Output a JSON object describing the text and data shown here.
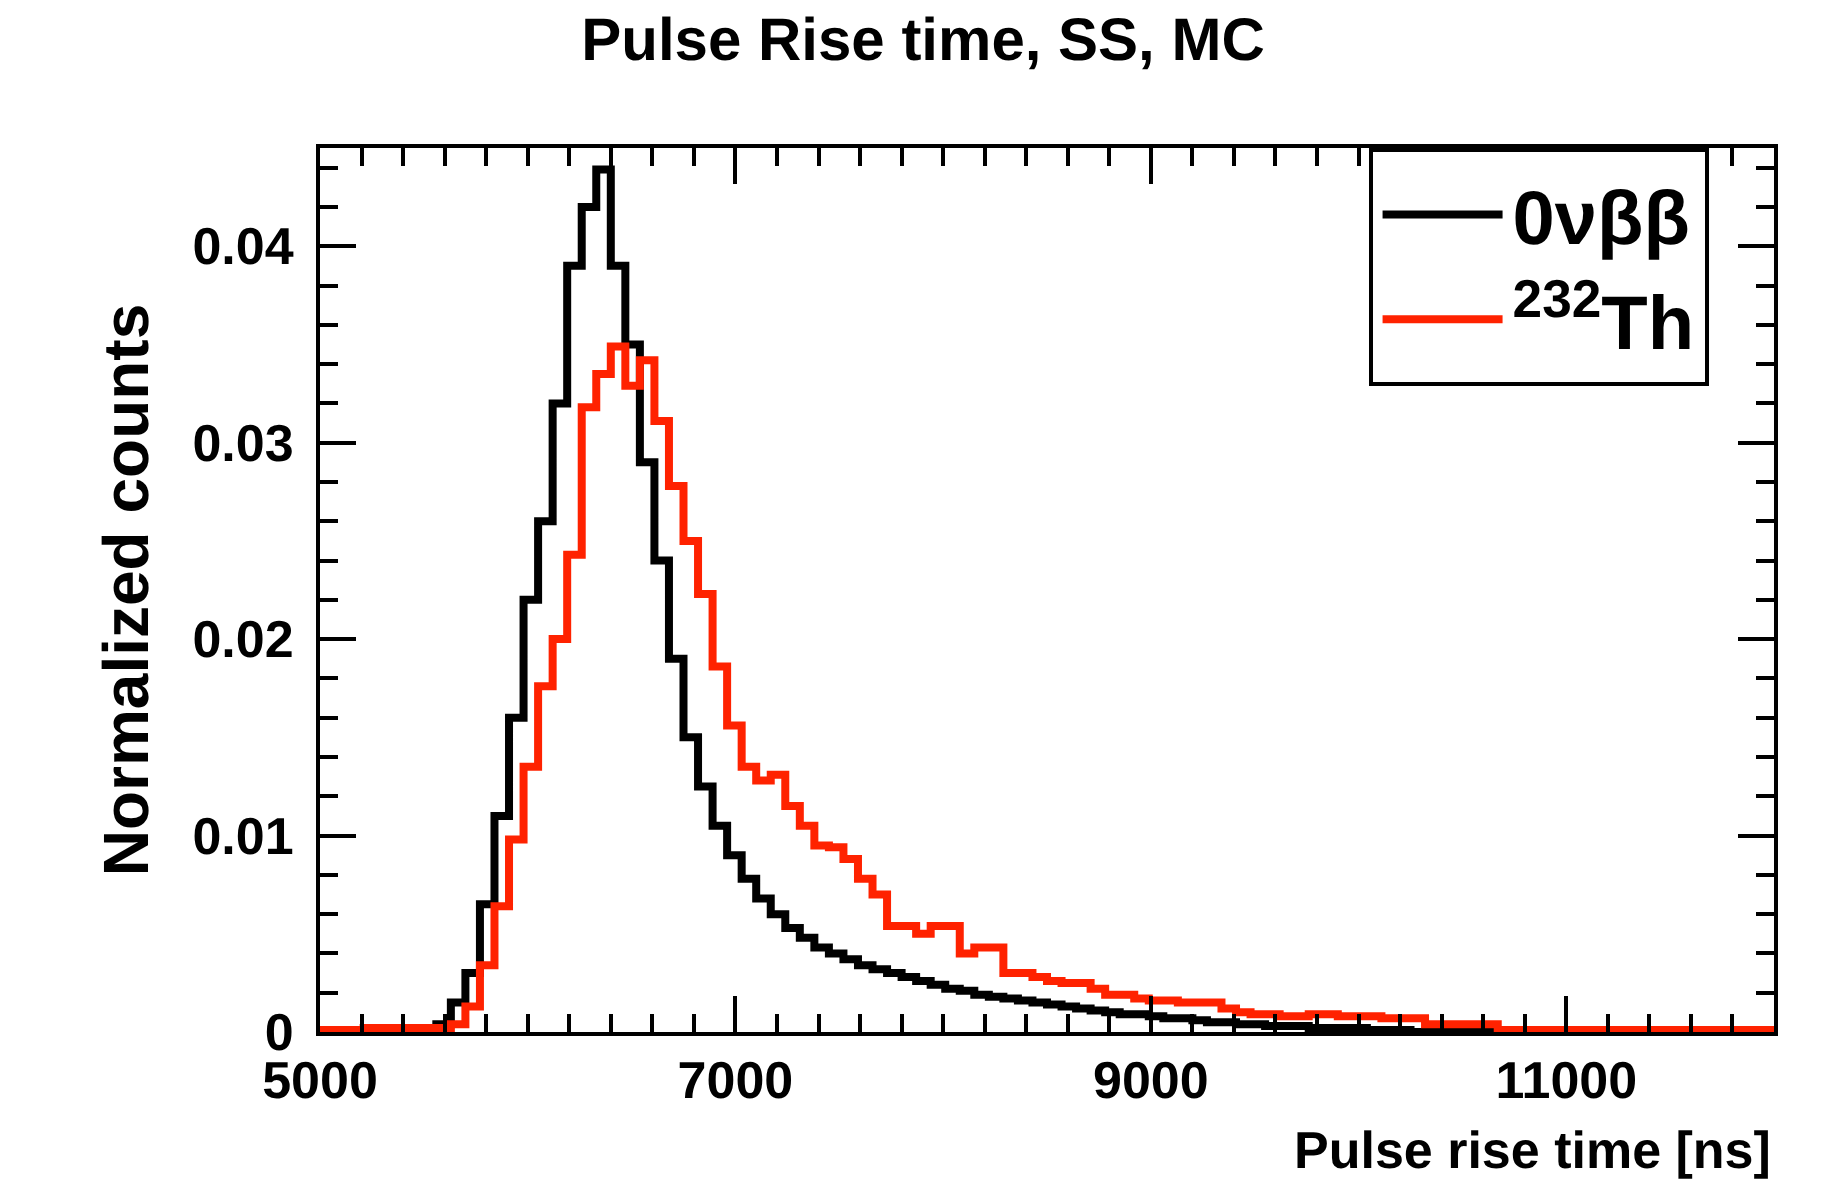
{
  "chart_data": {
    "type": "histogram",
    "title": "Pulse Rise time, SS, MC",
    "xlabel": "Pulse rise time [ns]",
    "ylabel": "Normalized counts",
    "bins": [
      5000,
      5070,
      5140,
      5210,
      5280,
      5350,
      5420,
      5490,
      5560,
      5630,
      5700,
      5770,
      5840,
      5910,
      5980,
      6050,
      6120,
      6190,
      6260,
      6330,
      6400,
      6470,
      6540,
      6610,
      6680,
      6750,
      6820,
      6890,
      6960,
      7030,
      7100,
      7170,
      7240,
      7310,
      7380,
      7450,
      7520,
      7590,
      7660,
      7730,
      7800,
      7870,
      7940,
      8010,
      8080,
      8150,
      8220,
      8290,
      8360,
      8430,
      8500,
      8570,
      8640,
      8710,
      8780,
      8850,
      8920,
      8990,
      9060,
      9130,
      9200,
      9270,
      9340,
      9410,
      9480,
      9550,
      9620,
      9690,
      9760,
      9830,
      9900,
      9970,
      10040,
      10110,
      10180,
      10250,
      10320,
      10390,
      10460,
      10530,
      10600,
      10670,
      10740,
      10810,
      10880,
      10950,
      11020,
      11090,
      11160,
      11230,
      11300,
      11370,
      11440,
      11510,
      11580,
      11650,
      11720,
      11790,
      11860,
      11930,
      12000
    ],
    "series": [
      {
        "name": "0νββ",
        "color": "#000000",
        "values": [
          0,
          0,
          0,
          0,
          0,
          0,
          0,
          0.0002,
          0.0004,
          0.0015,
          0.003,
          0.0065,
          0.011,
          0.016,
          0.022,
          0.026,
          0.032,
          0.039,
          0.042,
          0.0439,
          0.039,
          0.035,
          0.029,
          0.024,
          0.019,
          0.015,
          0.0125,
          0.0105,
          0.009,
          0.0078,
          0.0068,
          0.006,
          0.0053,
          0.0048,
          0.0043,
          0.004,
          0.0037,
          0.0034,
          0.0032,
          0.003,
          0.0028,
          0.0026,
          0.0024,
          0.0022,
          0.0021,
          0.0019,
          0.0018,
          0.0017,
          0.0016,
          0.0015,
          0.0014,
          0.0013,
          0.0012,
          0.0011,
          0.001,
          0.0009,
          0.0009,
          0.0008,
          0.0007,
          0.0007,
          0.0006,
          0.0005,
          0.0005,
          0.0004,
          0.0004,
          0.0003,
          0.0003,
          0.0003,
          0.0002,
          0.0002,
          0.0002,
          0.0002,
          0.0001,
          0.0001,
          0.0001,
          0,
          0,
          0,
          0,
          0,
          0,
          0,
          0,
          0,
          0,
          0,
          0,
          0,
          0,
          0,
          0,
          0,
          0,
          0,
          0,
          0,
          0,
          0,
          0,
          0
        ]
      },
      {
        "name": "$^{232}$Th",
        "color": "#ff2200",
        "values": [
          0.0001,
          0.0001,
          0.0001,
          0.0002,
          0.0002,
          0.0002,
          0.0002,
          0.0002,
          0.0002,
          0.0004,
          0.0013,
          0.0034,
          0.0064,
          0.0098,
          0.0135,
          0.0176,
          0.02,
          0.0243,
          0.0318,
          0.0335,
          0.0349,
          0.0329,
          0.0342,
          0.0311,
          0.0278,
          0.025,
          0.0223,
          0.0186,
          0.0156,
          0.0135,
          0.0128,
          0.0131,
          0.0115,
          0.0105,
          0.0095,
          0.0094,
          0.0088,
          0.0078,
          0.007,
          0.0054,
          0.0054,
          0.005,
          0.0054,
          0.0054,
          0.004,
          0.0043,
          0.0043,
          0.003,
          0.003,
          0.0028,
          0.0026,
          0.0025,
          0.0025,
          0.0022,
          0.0019,
          0.0019,
          0.0017,
          0.0016,
          0.0016,
          0.0015,
          0.0015,
          0.0015,
          0.0012,
          0.001,
          0.0009,
          0.0009,
          0.0008,
          0.0008,
          0.0009,
          0.0009,
          0.0008,
          0.0008,
          0.0008,
          0.0007,
          0.0007,
          0.0007,
          0.0004,
          0.0004,
          0.0004,
          0.0004,
          0.0004,
          0.0001,
          0.0001,
          0.0001,
          0.0001,
          0.0001,
          0.0001,
          0.0001,
          0.0001,
          0.0001,
          0.0001,
          0.0001,
          0.0001,
          0.0001,
          0.0001,
          0.0001,
          0.0001,
          0.0001,
          0.0001,
          0.0001
        ]
      }
    ],
    "xlim": [
      5000,
      12000
    ],
    "xticks": [
      5000,
      7000,
      9000,
      11000
    ],
    "ylim": [
      0,
      0.045
    ],
    "yticks": [
      0,
      0.01,
      0.02,
      0.03,
      0.04
    ],
    "legend": "top right",
    "line_style": "solid",
    "marker": "none"
  }
}
